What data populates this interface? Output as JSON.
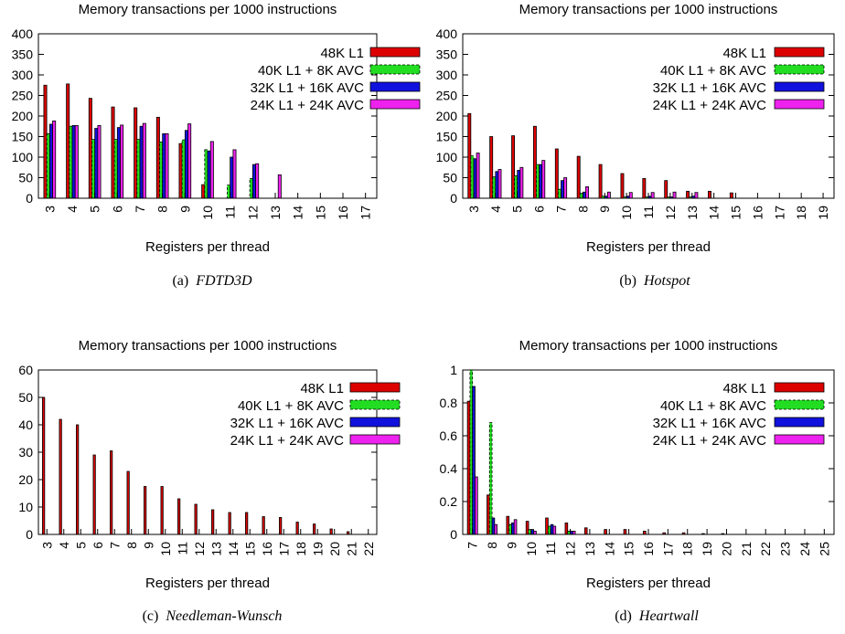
{
  "colors": {
    "s0": "#dd0000",
    "s1": "#22dd22",
    "s2": "#1111dd",
    "s3": "#ee22ee"
  },
  "chart_data": [
    {
      "type": "bar",
      "title": "Memory transactions per 1000 instructions",
      "xlabel": "Registers per thread",
      "ylabel": "",
      "ylim": [
        0,
        400
      ],
      "yticks": [
        0,
        50,
        100,
        150,
        200,
        250,
        300,
        350,
        400
      ],
      "legend_position": "top-right",
      "caption_label": "(a)",
      "caption_name": "FDTD3D",
      "categories": [
        "3",
        "4",
        "5",
        "6",
        "7",
        "8",
        "9",
        "10",
        "11",
        "12",
        "13",
        "14",
        "15",
        "16",
        "17"
      ],
      "series": [
        {
          "name": "48K L1",
          "values": [
            275,
            278,
            243,
            222,
            220,
            197,
            133,
            33,
            0,
            0,
            0,
            0,
            0,
            0,
            0
          ]
        },
        {
          "name": "40K L1 + 8K AVC",
          "values": [
            157,
            175,
            143,
            143,
            143,
            137,
            142,
            118,
            32,
            48,
            0,
            0,
            0,
            0,
            0
          ]
        },
        {
          "name": "32K L1 + 16K AVC",
          "values": [
            180,
            177,
            170,
            172,
            175,
            157,
            165,
            115,
            100,
            82,
            0,
            0,
            0,
            0,
            0
          ]
        },
        {
          "name": "24K L1 + 24K AVC",
          "values": [
            188,
            177,
            177,
            178,
            182,
            157,
            181,
            138,
            118,
            84,
            57,
            0,
            0,
            0,
            0
          ]
        }
      ]
    },
    {
      "type": "bar",
      "title": "Memory transactions per 1000 instructions",
      "xlabel": "Registers per thread",
      "ylabel": "",
      "ylim": [
        0,
        400
      ],
      "yticks": [
        0,
        50,
        100,
        150,
        200,
        250,
        300,
        350,
        400
      ],
      "legend_position": "top-right",
      "caption_label": "(b)",
      "caption_name": "Hotspot",
      "categories": [
        "3",
        "4",
        "5",
        "6",
        "7",
        "8",
        "9",
        "10",
        "11",
        "12",
        "13",
        "14",
        "15",
        "16",
        "17",
        "18",
        "19"
      ],
      "series": [
        {
          "name": "48K L1",
          "values": [
            206,
            150,
            152,
            175,
            120,
            102,
            82,
            60,
            48,
            43,
            17,
            17,
            13,
            0,
            0,
            0,
            0
          ]
        },
        {
          "name": "40K L1 + 8K AVC",
          "values": [
            103,
            52,
            55,
            82,
            22,
            12,
            5,
            3,
            3,
            3,
            3,
            0,
            0,
            0,
            0,
            0,
            0
          ]
        },
        {
          "name": "32K L1 + 16K AVC",
          "values": [
            96,
            65,
            68,
            82,
            43,
            15,
            5,
            5,
            5,
            3,
            5,
            0,
            0,
            0,
            0,
            0,
            0
          ]
        },
        {
          "name": "24K L1 + 24K AVC",
          "values": [
            110,
            70,
            75,
            92,
            50,
            28,
            15,
            14,
            14,
            15,
            14,
            0,
            0,
            0,
            0,
            0,
            0
          ]
        }
      ]
    },
    {
      "type": "bar",
      "title": "Memory transactions per 1000 instructions",
      "xlabel": "Registers per thread",
      "ylabel": "",
      "ylim": [
        0,
        60
      ],
      "yticks": [
        0,
        10,
        20,
        30,
        40,
        50,
        60
      ],
      "legend_position": "top-right",
      "caption_label": "(c)",
      "caption_name": "Needleman-Wunsch",
      "categories": [
        "3",
        "4",
        "5",
        "6",
        "7",
        "8",
        "9",
        "10",
        "11",
        "12",
        "13",
        "14",
        "15",
        "16",
        "17",
        "18",
        "19",
        "20",
        "21",
        "22"
      ],
      "series": [
        {
          "name": "48K L1",
          "values": [
            50,
            42,
            40,
            29,
            30.5,
            23,
            17.5,
            17.5,
            13,
            11,
            9,
            8,
            8,
            6.5,
            6.2,
            4.5,
            3.8,
            2,
            1,
            0
          ]
        },
        {
          "name": "40K L1 + 8K AVC",
          "values": [
            0,
            0,
            0,
            0,
            0,
            0,
            0,
            0,
            0,
            0,
            0,
            0,
            0,
            0,
            0,
            0,
            0,
            0,
            0,
            0
          ]
        },
        {
          "name": "32K L1 + 16K AVC",
          "values": [
            0,
            0,
            0,
            0,
            0,
            0,
            0,
            0,
            0,
            0,
            0,
            0,
            0,
            0,
            0,
            0,
            0,
            0,
            0,
            0
          ]
        },
        {
          "name": "24K L1 + 24K AVC",
          "values": [
            0,
            0,
            0,
            0,
            0,
            0,
            0,
            0,
            0,
            0,
            0,
            0,
            0,
            0,
            0,
            0,
            0,
            0,
            0,
            0
          ]
        }
      ]
    },
    {
      "type": "bar",
      "title": "Memory transactions per 1000 instructions",
      "xlabel": "Registers per thread",
      "ylabel": "",
      "ylim": [
        0,
        1
      ],
      "yticks": [
        0,
        0.2,
        0.4,
        0.6,
        0.8,
        1
      ],
      "legend_position": "top-right",
      "caption_label": "(d)",
      "caption_name": "Heartwall",
      "categories": [
        "7",
        "8",
        "9",
        "10",
        "11",
        "12",
        "13",
        "14",
        "15",
        "16",
        "17",
        "18",
        "19",
        "20",
        "21",
        "22",
        "23",
        "24",
        "25"
      ],
      "series": [
        {
          "name": "48K L1",
          "values": [
            0.81,
            0.24,
            0.11,
            0.08,
            0.1,
            0.07,
            0.04,
            0.03,
            0.03,
            0.02,
            0.01,
            0.01,
            0.005,
            0.005,
            0,
            0,
            0,
            0,
            0
          ]
        },
        {
          "name": "40K L1 + 8K AVC",
          "values": [
            1.0,
            0.68,
            0.06,
            0.03,
            0.05,
            0.02,
            0,
            0,
            0,
            0,
            0,
            0,
            0,
            0,
            0,
            0,
            0,
            0,
            0
          ]
        },
        {
          "name": "32K L1 + 16K AVC",
          "values": [
            0.9,
            0.1,
            0.07,
            0.03,
            0.06,
            0.02,
            0,
            0,
            0,
            0,
            0,
            0,
            0,
            0,
            0,
            0,
            0,
            0,
            0
          ]
        },
        {
          "name": "24K L1 + 24K AVC",
          "values": [
            0.35,
            0.06,
            0.09,
            0.02,
            0.05,
            0.02,
            0,
            0,
            0,
            0,
            0,
            0,
            0,
            0,
            0,
            0,
            0,
            0,
            0
          ]
        }
      ]
    }
  ]
}
